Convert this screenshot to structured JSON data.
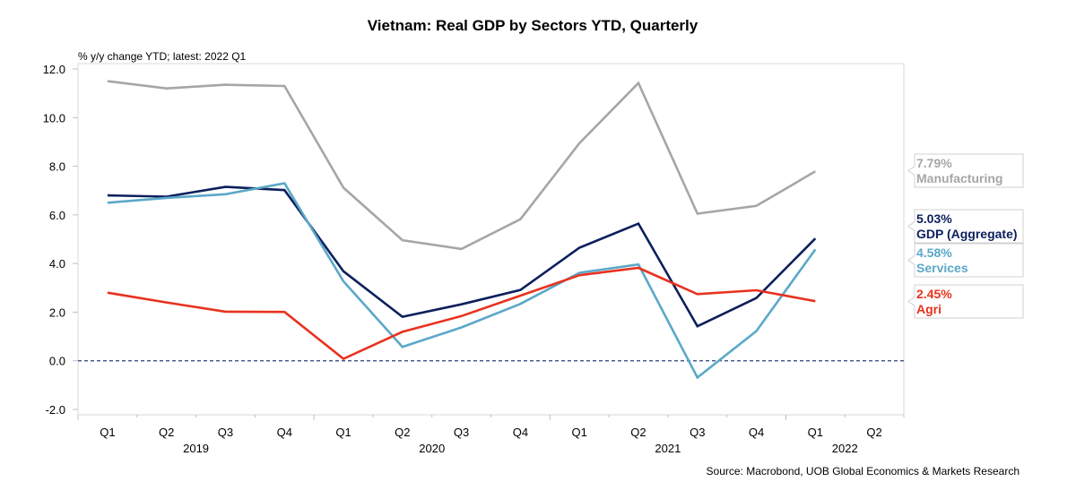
{
  "chart_data": {
    "type": "line",
    "title": "Vietnam: Real GDP by Sectors YTD, Quarterly",
    "subtitle": "% y/y change YTD; latest: 2022 Q1",
    "source": "Source: Macrobond, UOB Global Economics & Markets Research",
    "xlabel": "",
    "ylabel": "% y/y change YTD",
    "ylim": [
      -2,
      12
    ],
    "yticks": [
      -2.0,
      0.0,
      2.0,
      4.0,
      6.0,
      8.0,
      10.0,
      12.0
    ],
    "ytick_labels": [
      "-2.0",
      "0.0",
      "2.0",
      "4.0",
      "6.0",
      "8.0",
      "10.0",
      "12.0"
    ],
    "x": [
      "2019 Q1",
      "2019 Q2",
      "2019 Q3",
      "2019 Q4",
      "2020 Q1",
      "2020 Q2",
      "2020 Q3",
      "2020 Q4",
      "2021 Q1",
      "2021 Q2",
      "2021 Q3",
      "2021 Q4",
      "2022 Q1",
      "2022 Q2"
    ],
    "quarter_labels": [
      "Q1",
      "Q2",
      "Q3",
      "Q4",
      "Q1",
      "Q2",
      "Q3",
      "Q4",
      "Q1",
      "Q2",
      "Q3",
      "Q4",
      "Q1",
      "Q2"
    ],
    "year_labels": [
      {
        "label": "2019",
        "center_index": 1.5
      },
      {
        "label": "2020",
        "center_index": 5.5
      },
      {
        "label": "2021",
        "center_index": 9.5
      },
      {
        "label": "2022",
        "center_index": 12.5
      }
    ],
    "zero_line": {
      "value": 0,
      "style": "dashed",
      "color": "#2b3f7a"
    },
    "grid": false,
    "legend": "right, end-of-line value labels",
    "series": [
      {
        "name": "Manufacturing",
        "color": "#a6a6a6",
        "end_label": "7.79%",
        "values": [
          11.5,
          11.2,
          11.35,
          11.3,
          7.12,
          4.96,
          4.6,
          5.82,
          8.95,
          11.42,
          6.05,
          6.37,
          7.79
        ]
      },
      {
        "name": "GDP (Aggregate)",
        "color": "#0c1f5c",
        "end_label": "5.03%",
        "values": [
          6.8,
          6.75,
          7.15,
          7.02,
          3.68,
          1.81,
          2.32,
          2.91,
          4.65,
          5.64,
          1.42,
          2.58,
          5.03
        ]
      },
      {
        "name": "Services",
        "color": "#5ba8c8",
        "end_label": "4.58%",
        "values": [
          6.5,
          6.7,
          6.85,
          7.3,
          3.27,
          0.57,
          1.37,
          2.34,
          3.62,
          3.96,
          -0.69,
          1.22,
          4.58
        ]
      },
      {
        "name": "Agri",
        "color": "#e8321e",
        "end_label": "2.45%",
        "values": [
          2.8,
          2.4,
          2.02,
          2.01,
          0.08,
          1.19,
          1.84,
          2.68,
          3.52,
          3.82,
          2.74,
          2.9,
          2.45
        ]
      }
    ]
  }
}
